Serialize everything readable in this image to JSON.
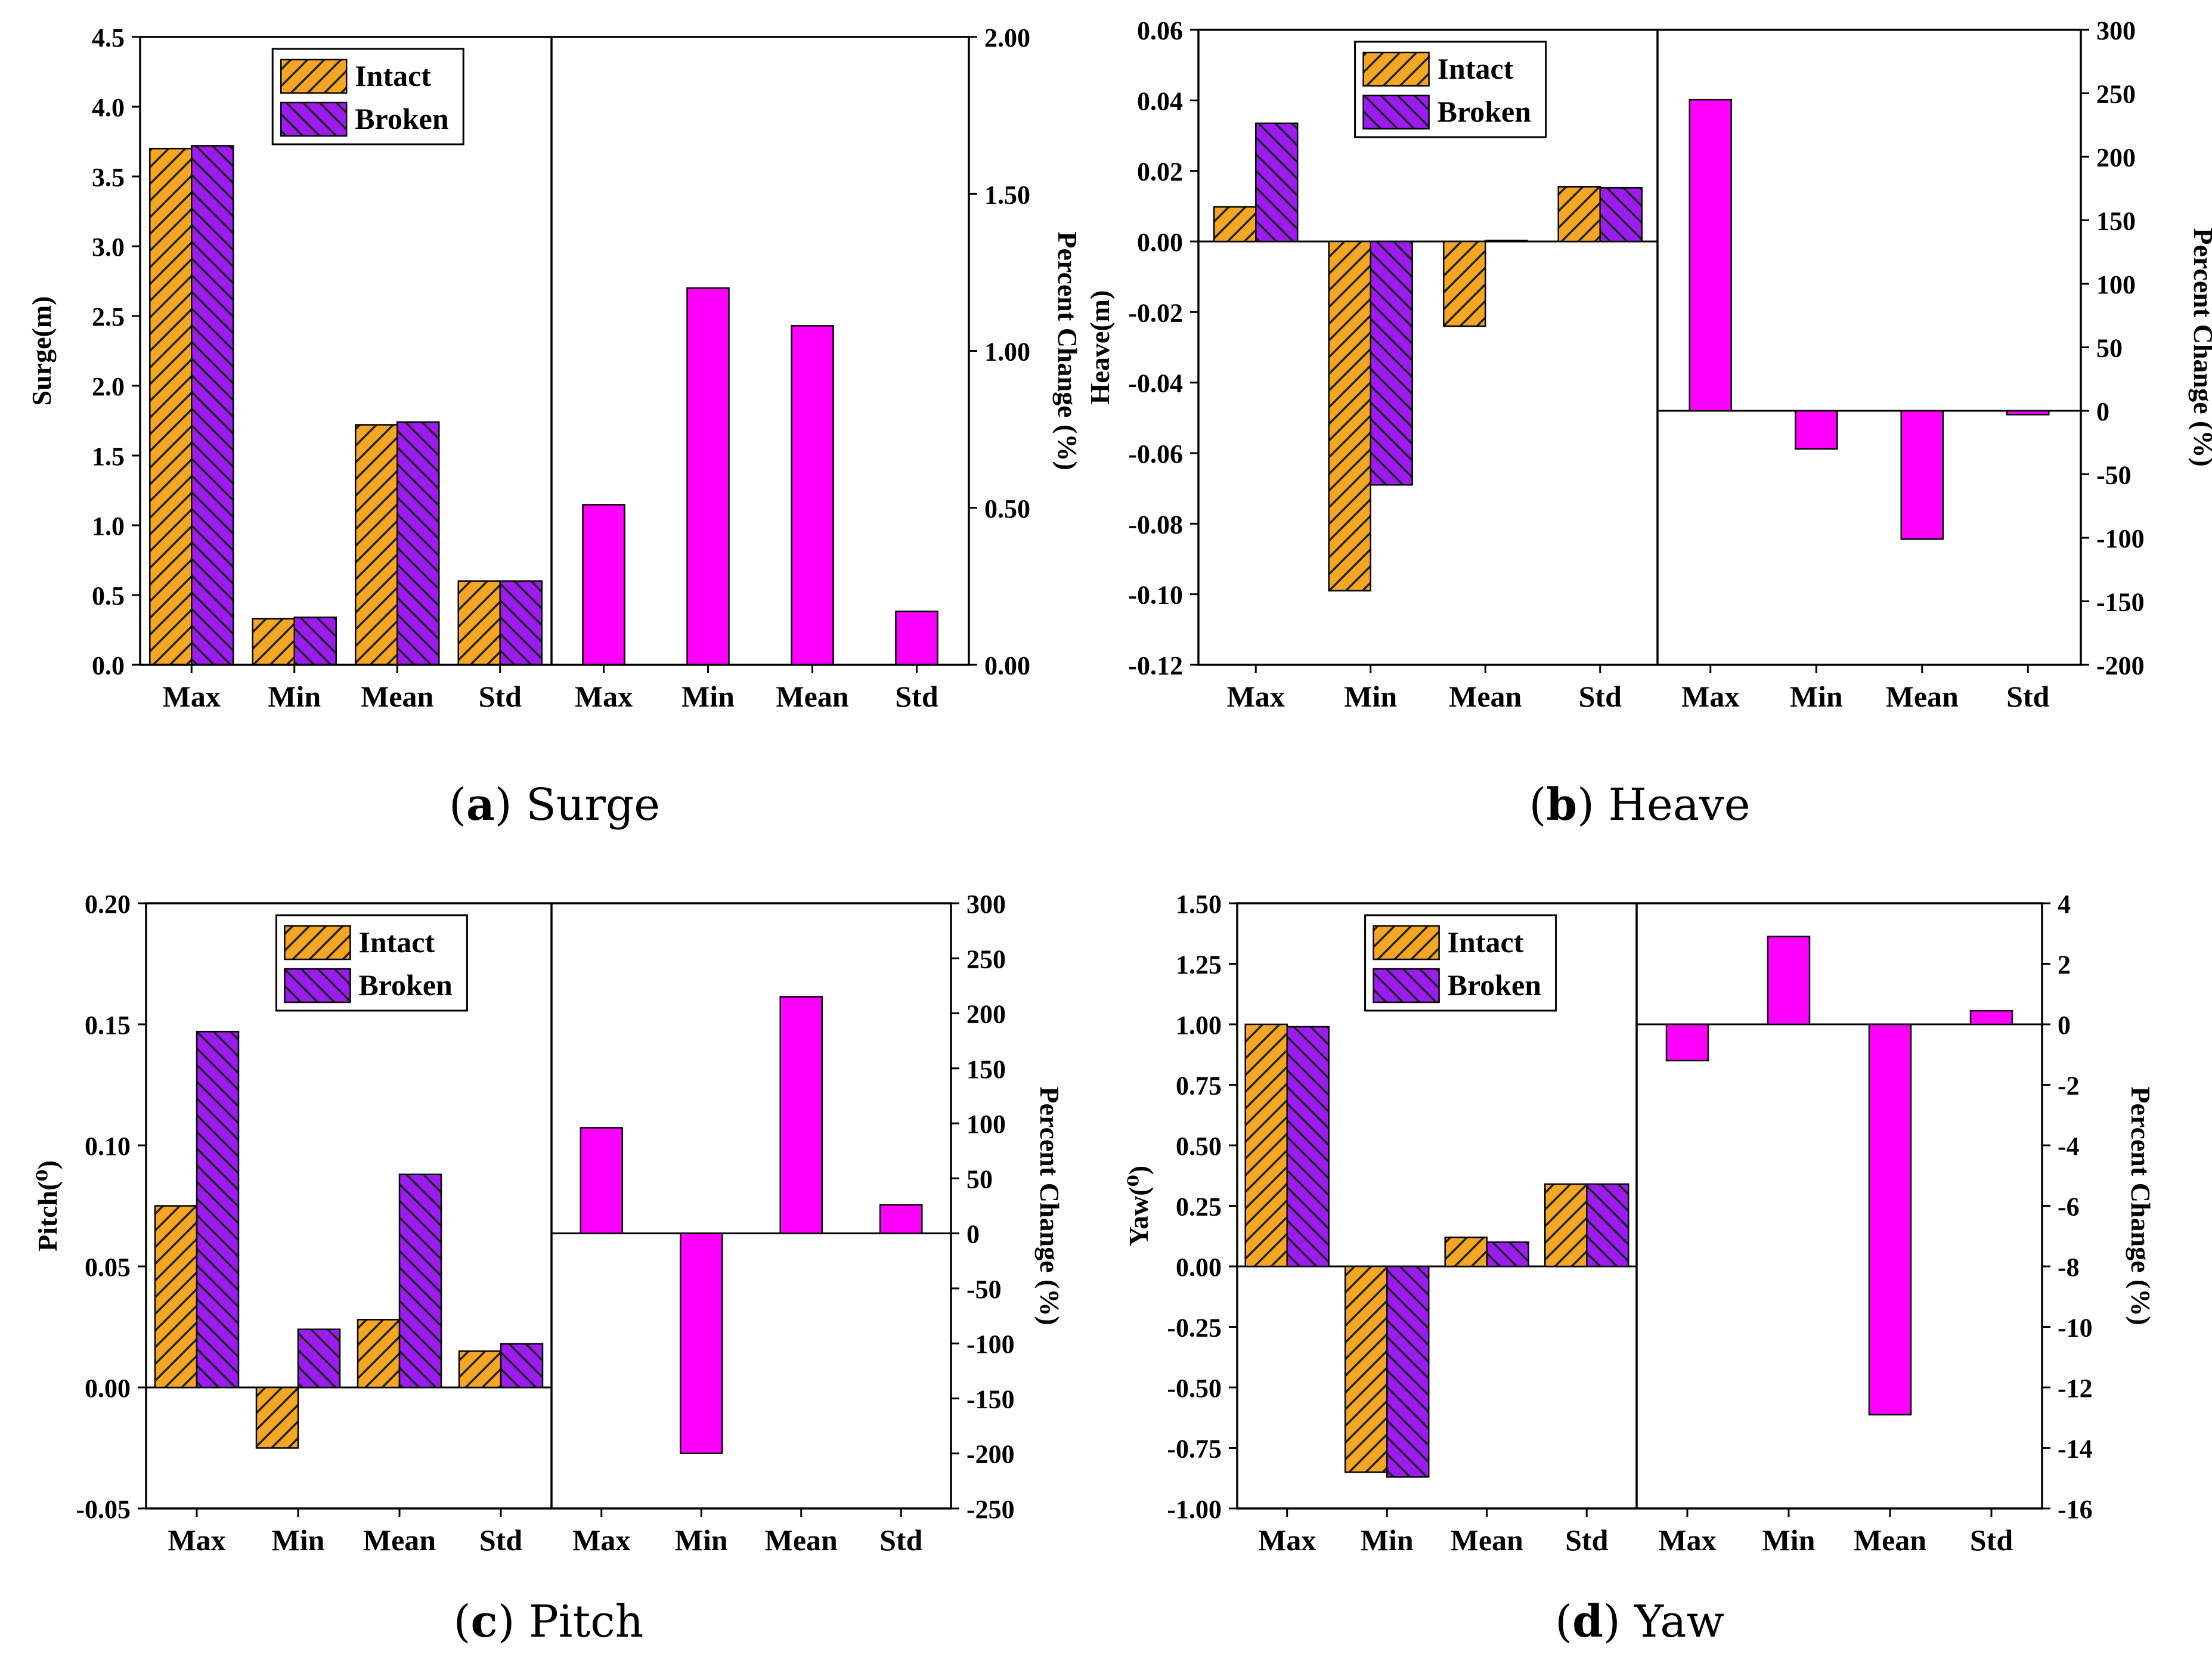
{
  "colors": {
    "intact": "#f5a623",
    "broken": "#9b1bf0",
    "percent": "#ff00ff",
    "axis": "#000000"
  },
  "chart_data": [
    {
      "id": "surge",
      "type": "bar",
      "caption_letter": "a",
      "caption_text": "Surge",
      "categories": [
        "Max",
        "Min",
        "Mean",
        "Std"
      ],
      "left": {
        "ylabel": "Surge(m)",
        "ylim": [
          0,
          4.5
        ],
        "ticks": [
          "0.0",
          "0.5",
          "1.0",
          "1.5",
          "2.0",
          "2.5",
          "3.0",
          "3.5",
          "4.0",
          "4.5"
        ],
        "series": [
          {
            "name": "Intact",
            "values": [
              3.7,
              0.33,
              1.72,
              0.6
            ]
          },
          {
            "name": "Broken",
            "values": [
              3.72,
              0.34,
              1.74,
              0.6
            ]
          }
        ]
      },
      "right": {
        "ylabel": "Percent Change (%)",
        "ylim": [
          0,
          2.0
        ],
        "ticks": [
          "0.00",
          "0.50",
          "1.00",
          "1.50",
          "2.00"
        ],
        "values": [
          0.51,
          1.2,
          1.08,
          0.17
        ]
      },
      "legend_position": "top-center"
    },
    {
      "id": "heave",
      "type": "bar",
      "caption_letter": "b",
      "caption_text": "Heave",
      "categories": [
        "Max",
        "Min",
        "Mean",
        "Std"
      ],
      "left": {
        "ylabel": "Heave(m)",
        "ylim": [
          -0.12,
          0.06
        ],
        "ticks": [
          "-0.12",
          "-0.10",
          "-0.08",
          "-0.06",
          "-0.04",
          "-0.02",
          "0.00",
          "0.02",
          "0.04",
          "0.06"
        ],
        "series": [
          {
            "name": "Intact",
            "values": [
              0.0098,
              -0.099,
              -0.024,
              0.0155
            ]
          },
          {
            "name": "Broken",
            "values": [
              0.0335,
              -0.069,
              0.0003,
              0.0152
            ]
          }
        ]
      },
      "right": {
        "ylabel": "Percent Change (%)",
        "ylim": [
          -200,
          300
        ],
        "ticks": [
          "-200",
          "-150",
          "-100",
          "-50",
          "0",
          "50",
          "100",
          "150",
          "200",
          "250",
          "300"
        ],
        "values": [
          245,
          -30,
          -101,
          -3
        ]
      },
      "legend_position": "top-center"
    },
    {
      "id": "pitch",
      "type": "bar",
      "caption_letter": "c",
      "caption_text": "Pitch",
      "categories": [
        "Max",
        "Min",
        "Mean",
        "Std"
      ],
      "left": {
        "ylabel": "Pitch(⁰)",
        "ylim": [
          -0.05,
          0.2
        ],
        "ticks": [
          "-0.05",
          "0.00",
          "0.05",
          "0.10",
          "0.15",
          "0.20"
        ],
        "series": [
          {
            "name": "Intact",
            "values": [
              0.075,
              -0.025,
              0.028,
              0.015
            ]
          },
          {
            "name": "Broken",
            "values": [
              0.147,
              0.024,
              0.088,
              0.018
            ]
          }
        ]
      },
      "right": {
        "ylabel": "Percent Change (%)",
        "ylim": [
          -250,
          300
        ],
        "ticks": [
          "-250",
          "-200",
          "-150",
          "-100",
          "-50",
          "0",
          "50",
          "100",
          "150",
          "200",
          "250",
          "300"
        ],
        "values": [
          96,
          -200,
          215,
          26
        ]
      },
      "legend_position": "top-center"
    },
    {
      "id": "yaw",
      "type": "bar",
      "caption_letter": "d",
      "caption_text": "Yaw",
      "categories": [
        "Max",
        "Min",
        "Mean",
        "Std"
      ],
      "left": {
        "ylabel": "Yaw(⁰)",
        "ylim": [
          -1.0,
          1.5
        ],
        "ticks": [
          "-1.00",
          "-0.75",
          "-0.50",
          "-0.25",
          "0.00",
          "0.25",
          "0.50",
          "0.75",
          "1.00",
          "1.25",
          "1.50"
        ],
        "series": [
          {
            "name": "Intact",
            "values": [
              1.0,
              -0.85,
              0.12,
              0.34
            ]
          },
          {
            "name": "Broken",
            "values": [
              0.99,
              -0.87,
              0.1,
              0.34
            ]
          }
        ]
      },
      "right": {
        "ylabel": "Percent Change (%)",
        "ylim": [
          -16,
          4
        ],
        "ticks": [
          "-16",
          "-14",
          "-12",
          "-10",
          "-8",
          "-6",
          "-4",
          "-2",
          "0",
          "2",
          "4"
        ],
        "values": [
          -1.2,
          2.9,
          -12.9,
          0.45
        ]
      },
      "legend_position": "top-center"
    }
  ]
}
